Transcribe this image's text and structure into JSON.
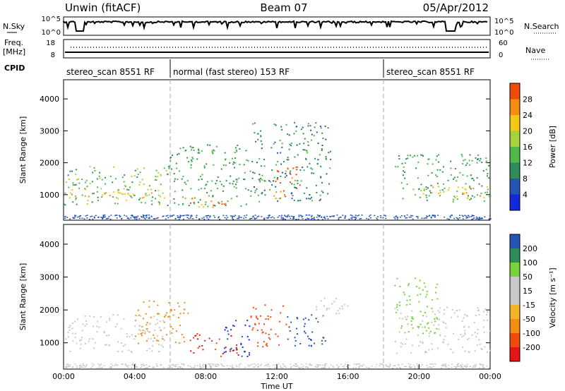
{
  "header": {
    "station": "Unwin (fitACF)",
    "beam": "Beam 07",
    "date": "05/Apr/2012"
  },
  "top_panel": {
    "left_label_1": "N.Sky",
    "left_label_2": "Freq.",
    "left_label_2b": "[MHz]",
    "left_label_3": "CPID",
    "right_label_1": "N.Search",
    "right_label_2": "Nave",
    "nsky_ticks": [
      "10^5",
      "10^0"
    ],
    "nsearch_ticks": [
      "10^5",
      "10^0"
    ],
    "freq_ticks": [
      "18",
      "8"
    ],
    "nave_ticks": [
      "60",
      "0"
    ]
  },
  "modes": [
    {
      "label": "stereo_scan 8551 RF",
      "start_hour": 0
    },
    {
      "label": "normal (fast stereo) 153 RF",
      "start_hour": 6
    },
    {
      "label": "stereo_scan 8551 RF",
      "start_hour": 18
    }
  ],
  "colors": {
    "power": [
      "#1428dc",
      "#2356b4",
      "#2e8c5a",
      "#4fb848",
      "#a8d23c",
      "#f5c818",
      "#f58c14",
      "#f04a0a",
      "#e61414"
    ],
    "velocity": [
      "#e61414",
      "#f04a0a",
      "#f58c14",
      "#f5b428",
      "#c8c8c8",
      "#c8c8c8",
      "#78d23c",
      "#2e8c5a",
      "#2356b4",
      "#1428dc"
    ]
  },
  "chart_data": [
    {
      "type": "heatmap",
      "name": "power-panel",
      "ylabel": "Slant Range [km]",
      "xlim": [
        0,
        24
      ],
      "ylim": [
        200,
        4600
      ],
      "yticks": [
        1000,
        2000,
        3000,
        4000
      ],
      "colorbar": {
        "label": "Power [dB]",
        "ticks": [
          4,
          8,
          12,
          16,
          20,
          24,
          28
        ],
        "range": [
          0,
          32
        ]
      },
      "regions": [
        {
          "t0": 0.0,
          "t1": 5.8,
          "r0": 700,
          "r1": 1900,
          "value": 14
        },
        {
          "t0": 0.0,
          "t1": 5.8,
          "r0": 850,
          "r1": 1200,
          "value": 22
        },
        {
          "t0": 5.8,
          "t1": 10.5,
          "r0": 650,
          "r1": 2600,
          "value": 12
        },
        {
          "t0": 6.8,
          "t1": 9.2,
          "r0": 600,
          "r1": 1000,
          "value": 26
        },
        {
          "t0": 10.5,
          "t1": 15.0,
          "r0": 800,
          "r1": 3300,
          "value": 10
        },
        {
          "t0": 11.8,
          "t1": 13.5,
          "r0": 900,
          "r1": 1900,
          "value": 28
        },
        {
          "t0": 18.6,
          "t1": 24.0,
          "r0": 800,
          "r1": 2300,
          "value": 12
        },
        {
          "t0": 19.5,
          "t1": 24.0,
          "r0": 900,
          "r1": 1300,
          "value": 22
        }
      ]
    },
    {
      "type": "heatmap",
      "name": "velocity-panel",
      "xlabel": "Time UT",
      "ylabel": "Slant Range [km]",
      "xlim": [
        0,
        24
      ],
      "ylim": [
        200,
        4600
      ],
      "xticks": [
        "00:00",
        "04:00",
        "08:00",
        "12:00",
        "16:00",
        "20:00",
        "00:00"
      ],
      "yticks": [
        1000,
        2000,
        3000,
        4000
      ],
      "colorbar": {
        "label": "Velocity [m s⁻¹]",
        "ticks": [
          -200,
          -100,
          -50,
          -15,
          15,
          50,
          100,
          200
        ],
        "tick_labels": [
          "-200",
          "-100",
          "-50",
          "-15",
          "15",
          "50",
          "100",
          "200"
        ]
      },
      "regions": [
        {
          "t0": 0.0,
          "t1": 5.8,
          "r0": 700,
          "r1": 1900,
          "value": 0
        },
        {
          "t0": 4.0,
          "t1": 7.0,
          "r0": 1000,
          "r1": 2300,
          "value": -80
        },
        {
          "t0": 7.0,
          "t1": 9.8,
          "r0": 600,
          "r1": 1300,
          "value": -200
        },
        {
          "t0": 8.8,
          "t1": 10.5,
          "r0": 600,
          "r1": 1700,
          "value": 200
        },
        {
          "t0": 10.5,
          "t1": 12.5,
          "r0": 900,
          "r1": 2200,
          "value": -150
        },
        {
          "t0": 12.5,
          "t1": 14.8,
          "r0": 900,
          "r1": 1900,
          "value": 180
        },
        {
          "t0": 14.0,
          "t1": 16.0,
          "r0": 1800,
          "r1": 2400,
          "value": 0
        },
        {
          "t0": 18.6,
          "t1": 24.0,
          "r0": 700,
          "r1": 2100,
          "value": 0
        },
        {
          "t0": 18.6,
          "t1": 21.0,
          "r0": 1300,
          "r1": 3000,
          "value": 40
        }
      ]
    }
  ]
}
